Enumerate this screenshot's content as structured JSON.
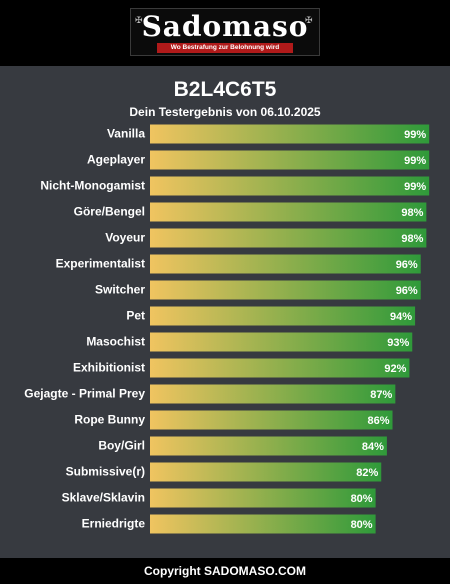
{
  "logo": {
    "wordmark": "Sadomaso",
    "tagline": "Wo Bestrafung zur Belohnung wird"
  },
  "header": {
    "title": "B2L4C6T5",
    "subtitle": "Dein Testergebnis von 06.10.2025"
  },
  "footer": {
    "text": "Copyright SADOMASO.COM"
  },
  "colors": {
    "bar_start": "#f0c460",
    "bar_end": "#2f9a3a",
    "background": "#373a40"
  },
  "chart_data": {
    "type": "bar",
    "orientation": "horizontal",
    "categories": [
      "Vanilla",
      "Ageplayer",
      "Nicht-Monogamist",
      "Göre/Bengel",
      "Voyeur",
      "Experimentalist",
      "Switcher",
      "Pet",
      "Masochist",
      "Exhibitionist",
      "Gejagte - Primal Prey",
      "Rope Bunny",
      "Boy/Girl",
      "Submissive(r)",
      "Sklave/Sklavin",
      "Erniedrigte"
    ],
    "values": [
      99,
      99,
      99,
      98,
      98,
      96,
      96,
      94,
      93,
      92,
      87,
      86,
      84,
      82,
      80,
      80
    ],
    "value_labels": [
      "99%",
      "99%",
      "99%",
      "98%",
      "98%",
      "96%",
      "96%",
      "94%",
      "93%",
      "92%",
      "87%",
      "86%",
      "84%",
      "82%",
      "80%",
      "80%"
    ],
    "xlim": [
      0,
      100
    ],
    "grid": false,
    "legend": "none"
  }
}
